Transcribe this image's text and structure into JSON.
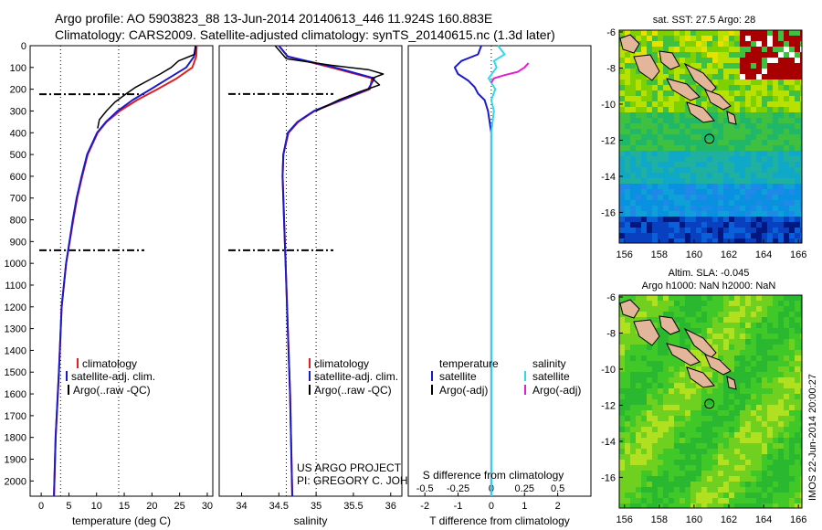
{
  "header": {
    "line1": "Argo profile: AO 5903823_88 13-Jun-2014 20140613_446 11.924S 160.883E",
    "line2": "Climatology: CARS2009. Satellite-adjusted climatology: synTS_20140615.nc (1.3d later)"
  },
  "colors": {
    "climatology": "#e02020",
    "satellite": "#1a1acc",
    "argo": "#000000",
    "sal_satellite": "#35d8e8",
    "sal_argo": "#e020d0",
    "land": "#e3b59a"
  },
  "chart_data": [
    {
      "type": "line",
      "name": "temperature-profile",
      "xlabel": "temperature (deg C)",
      "ylabel": "",
      "xlim": [
        -2,
        31
      ],
      "ylim": [
        2070,
        0
      ],
      "xticks": [
        "0",
        "5",
        "10",
        "15",
        "20",
        "25",
        "30"
      ],
      "yticks": [
        "0",
        "100",
        "200",
        "300",
        "400",
        "500",
        "600",
        "700",
        "800",
        "900",
        "1000",
        "1100",
        "1200",
        "1300",
        "1400",
        "1500",
        "1600",
        "1700",
        "1800",
        "1900",
        "2000"
      ],
      "legend": [
        "climatology",
        "satellite-adj. clim.",
        "Argo(..raw -QC)"
      ],
      "series": [
        {
          "name": "climatology",
          "depth": [
            0,
            50,
            100,
            150,
            200,
            250,
            300,
            350,
            400,
            500,
            600,
            700,
            800,
            1000,
            1200,
            1500,
            1800,
            2070
          ],
          "values": [
            28.1,
            28,
            27.3,
            24.5,
            21,
            17.3,
            14.2,
            11.8,
            10.2,
            8.4,
            7.4,
            6.5,
            5.8,
            4.5,
            3.7,
            3.2,
            2.6,
            2.3
          ]
        },
        {
          "name": "satellite-adj. clim.",
          "depth": [
            0,
            50,
            100,
            150,
            200,
            250,
            300,
            350,
            400,
            500,
            600,
            700,
            800,
            1000,
            1200,
            1500,
            1800,
            2070
          ],
          "values": [
            27.9,
            27.6,
            26.2,
            23,
            19.8,
            16.5,
            13.8,
            11.7,
            10.1,
            8.3,
            7.3,
            6.4,
            5.7,
            4.5,
            3.7,
            3.2,
            2.6,
            2.3
          ]
        },
        {
          "name": "Argo(..raw -QC)",
          "depth": [
            0,
            40,
            70,
            100,
            130,
            160,
            190,
            220,
            260,
            300,
            340,
            380
          ],
          "values": [
            27.9,
            27.7,
            24.8,
            23.5,
            21.5,
            19.3,
            17.1,
            15.4,
            13.3,
            11.8,
            10.5,
            10.2
          ]
        }
      ],
      "refs": {
        "dotted_x": [
          3.5,
          14
        ],
        "dashdot_depth": [
          223,
          940
        ]
      }
    },
    {
      "type": "line",
      "name": "salinity-profile",
      "xlabel": "salinity",
      "xlim": [
        33.7,
        36.15
      ],
      "ylim": [
        2070,
        0
      ],
      "xticks": [
        "34",
        "34.5",
        "35",
        "35.5",
        "36"
      ],
      "legend": [
        "climatology",
        "satellite-adj. clim.",
        "Argo(..raw -QC)"
      ],
      "series": [
        {
          "name": "climatology",
          "depth": [
            0,
            50,
            100,
            150,
            200,
            250,
            300,
            350,
            400,
            500,
            600,
            700,
            800,
            1000,
            1300,
            1600,
            2070
          ],
          "values": [
            34.5,
            34.62,
            35.2,
            35.75,
            35.72,
            35.35,
            34.98,
            34.76,
            34.63,
            34.56,
            34.55,
            34.56,
            34.57,
            34.59,
            34.62,
            34.65,
            34.68
          ]
        },
        {
          "name": "satellite-adj. clim.",
          "depth": [
            0,
            50,
            100,
            150,
            200,
            250,
            300,
            350,
            400,
            500,
            600,
            700,
            800,
            1000,
            1300,
            1600,
            2070
          ],
          "values": [
            34.5,
            34.62,
            35.25,
            35.78,
            35.7,
            35.33,
            34.97,
            34.75,
            34.62,
            34.56,
            34.55,
            34.56,
            34.57,
            34.59,
            34.62,
            34.65,
            34.68
          ]
        },
        {
          "name": "Argo(..raw -QC)",
          "depth": [
            0,
            60,
            90,
            110,
            130,
            150,
            180,
            210,
            250,
            300
          ],
          "values": [
            34.45,
            34.6,
            35.2,
            35.7,
            35.9,
            35.75,
            35.85,
            35.6,
            35.3,
            35.0
          ]
        }
      ],
      "refs": {
        "dotted_x": [
          34.6,
          35.0
        ],
        "dashdot_depth": [
          222,
          940
        ]
      }
    },
    {
      "type": "line",
      "name": "difference-profile",
      "xlabel": "T difference from climatology",
      "x2label": "S difference from climatology",
      "xlim": [
        -2.5,
        3
      ],
      "ylim": [
        2070,
        0
      ],
      "xticks": [
        "-2",
        "-1",
        "0",
        "1",
        "2"
      ],
      "x2ticks": [
        "-0.5",
        "-0.25",
        "0",
        "0.25",
        "0.5"
      ],
      "legend_temperature": [
        "temperature",
        "satellite",
        "Argo(-adj)"
      ],
      "legend_salinity": [
        "salinity",
        "satellite",
        "Argo(-adj)"
      ],
      "series": [
        {
          "name": "temperature satellite",
          "depth": [
            0,
            40,
            70,
            100,
            130,
            160,
            190,
            220,
            250,
            300,
            350,
            400,
            500,
            700,
            1000,
            1500,
            2070
          ],
          "values": [
            -0.3,
            -0.4,
            -0.9,
            -1.1,
            -1.0,
            -0.7,
            -0.5,
            -0.4,
            -0.2,
            -0.1,
            -0.05,
            0,
            0,
            0,
            0,
            0,
            0
          ]
        },
        {
          "name": "salinity satellite",
          "depth": [
            0,
            40,
            70,
            100,
            150,
            200,
            250,
            300,
            400,
            600,
            1000,
            1500,
            2070
          ],
          "values": [
            0.05,
            0.1,
            0.02,
            0.04,
            -0.02,
            0.03,
            0.0,
            0.02,
            0.0,
            0.0,
            0.0,
            0.0,
            0.0
          ]
        },
        {
          "name": "salinity Argo(-adj)",
          "depth": [
            80,
            100,
            120,
            135,
            150,
            170
          ],
          "values": [
            0.28,
            0.25,
            0.2,
            0.1,
            0.02,
            0.0
          ]
        }
      ]
    },
    {
      "type": "heatmap",
      "name": "sst-map",
      "title": "sat. SST: 27.5 Argo: 28",
      "xticks": [
        "156",
        "158",
        "160",
        "162",
        "164",
        "166"
      ],
      "yticks": [
        "-6",
        "-8",
        "-10",
        "-12",
        "-14",
        "-16"
      ],
      "xlim": [
        155.7,
        166.2
      ],
      "ylim": [
        -17.7,
        -5.9
      ],
      "marker": {
        "lon": 160.883,
        "lat": -11.924
      }
    },
    {
      "type": "heatmap",
      "name": "sla-map",
      "title": "Altim. SLA: -0.045",
      "subtitle": "Argo h1000: NaN h2000: NaN",
      "xticks": [
        "156",
        "158",
        "160",
        "162",
        "164",
        "166"
      ],
      "yticks": [
        "-6",
        "-8",
        "-10",
        "-12",
        "-14",
        "-16"
      ],
      "xlim": [
        155.7,
        166.2
      ],
      "ylim": [
        -17.7,
        -5.9
      ],
      "marker": {
        "lon": 160.883,
        "lat": -11.924
      }
    }
  ],
  "credits": {
    "line1": "US ARGO PROJECT",
    "line2": "PI: GREGORY C. JOHNSON",
    "side": "IMOS 22-Jun-2014 20:00:27"
  }
}
